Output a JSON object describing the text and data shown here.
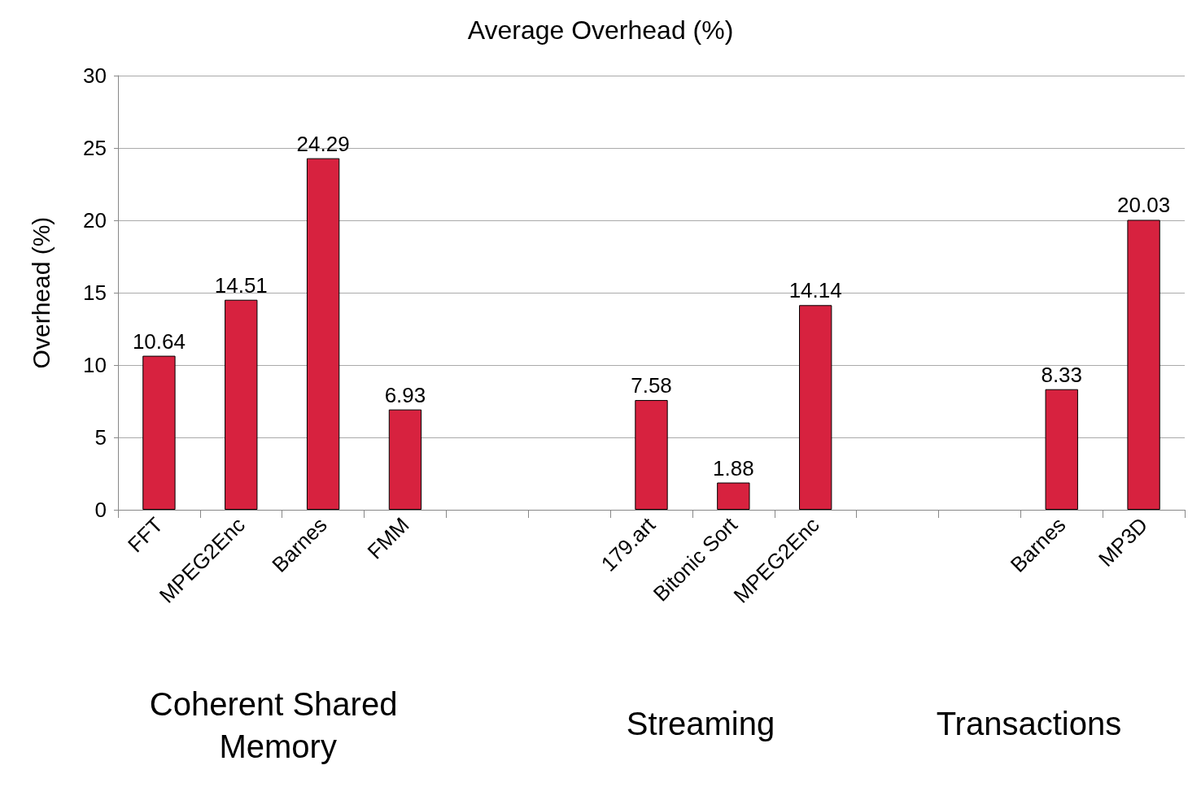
{
  "chart_data": {
    "type": "bar",
    "title": "Average Overhead (%)",
    "ylabel": "Overhead (%)",
    "categories": [
      "FFT",
      "MPEG2Enc",
      "Barnes",
      "FMM",
      null,
      null,
      "179.art",
      "Bitonic Sort",
      "MPEG2Enc",
      null,
      null,
      "Barnes",
      "MP3D"
    ],
    "values": [
      10.64,
      14.51,
      24.29,
      6.93,
      null,
      null,
      7.58,
      1.88,
      14.14,
      null,
      null,
      8.33,
      20.03
    ],
    "color": "#d7223f",
    "ylim": [
      0,
      30
    ],
    "yticks": [
      0,
      5,
      10,
      15,
      20,
      25,
      30
    ],
    "grid": "y",
    "data_labels": true,
    "annotations": [
      "Coherent Shared Memory",
      "Streaming",
      "Transactions"
    ]
  }
}
